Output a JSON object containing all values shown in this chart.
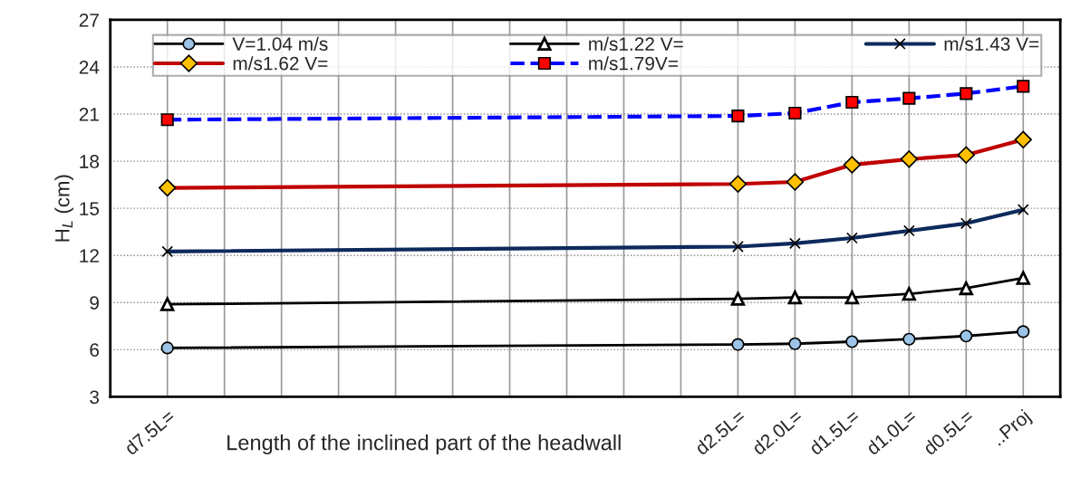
{
  "chart_data": {
    "type": "line",
    "xlabel": "Length of the inclined part of the headwall",
    "ylabel": "H$_{L}$ (cm)",
    "categories": [
      "d7.5L=",
      null,
      null,
      null,
      null,
      null,
      null,
      null,
      null,
      null,
      "d2.5L=",
      "d2.0L=",
      "d1.5L=",
      "d1.0L=",
      "d0.5L=",
      "..Proj"
    ],
    "series": [
      {
        "name": "V=1.04 m/s",
        "color": "#000000",
        "marker": "circle",
        "line_style": "solid",
        "values": [
          6.11,
          null,
          null,
          null,
          null,
          null,
          null,
          null,
          null,
          null,
          6.33,
          6.38,
          6.51,
          6.67,
          6.87,
          7.15
        ]
      },
      {
        "name": "m/s1.22 V=",
        "color": "#000000",
        "marker": "triangle",
        "line_style": "solid",
        "values": [
          8.89,
          null,
          null,
          null,
          null,
          null,
          null,
          null,
          null,
          null,
          9.24,
          9.33,
          9.33,
          9.55,
          9.91,
          10.57
        ]
      },
      {
        "name": "m/s1.43 V=",
        "color": "#0d2a5c",
        "marker": "cross",
        "line_style": "solid",
        "values": [
          12.25,
          null,
          null,
          null,
          null,
          null,
          null,
          null,
          null,
          null,
          12.56,
          12.77,
          13.11,
          13.57,
          14.04,
          14.91
        ]
      },
      {
        "name": "m/s1.62 V=",
        "color": "#c00000",
        "marker": "diamond",
        "line_style": "solid",
        "values": [
          16.3,
          null,
          null,
          null,
          null,
          null,
          null,
          null,
          null,
          null,
          16.55,
          16.68,
          17.77,
          18.13,
          18.4,
          19.37
        ]
      },
      {
        "name": "m/s1.79V=",
        "color": "#0000ff",
        "marker": "square",
        "line_style": "dashed",
        "values": [
          20.64,
          null,
          null,
          null,
          null,
          null,
          null,
          null,
          null,
          null,
          20.88,
          21.06,
          21.75,
          22.0,
          22.31,
          22.77
        ]
      }
    ],
    "ylim": [
      3,
      27
    ],
    "yticks": [
      3,
      6,
      9,
      12,
      15,
      18,
      21,
      24,
      27
    ],
    "grid": true,
    "legend": "top"
  }
}
